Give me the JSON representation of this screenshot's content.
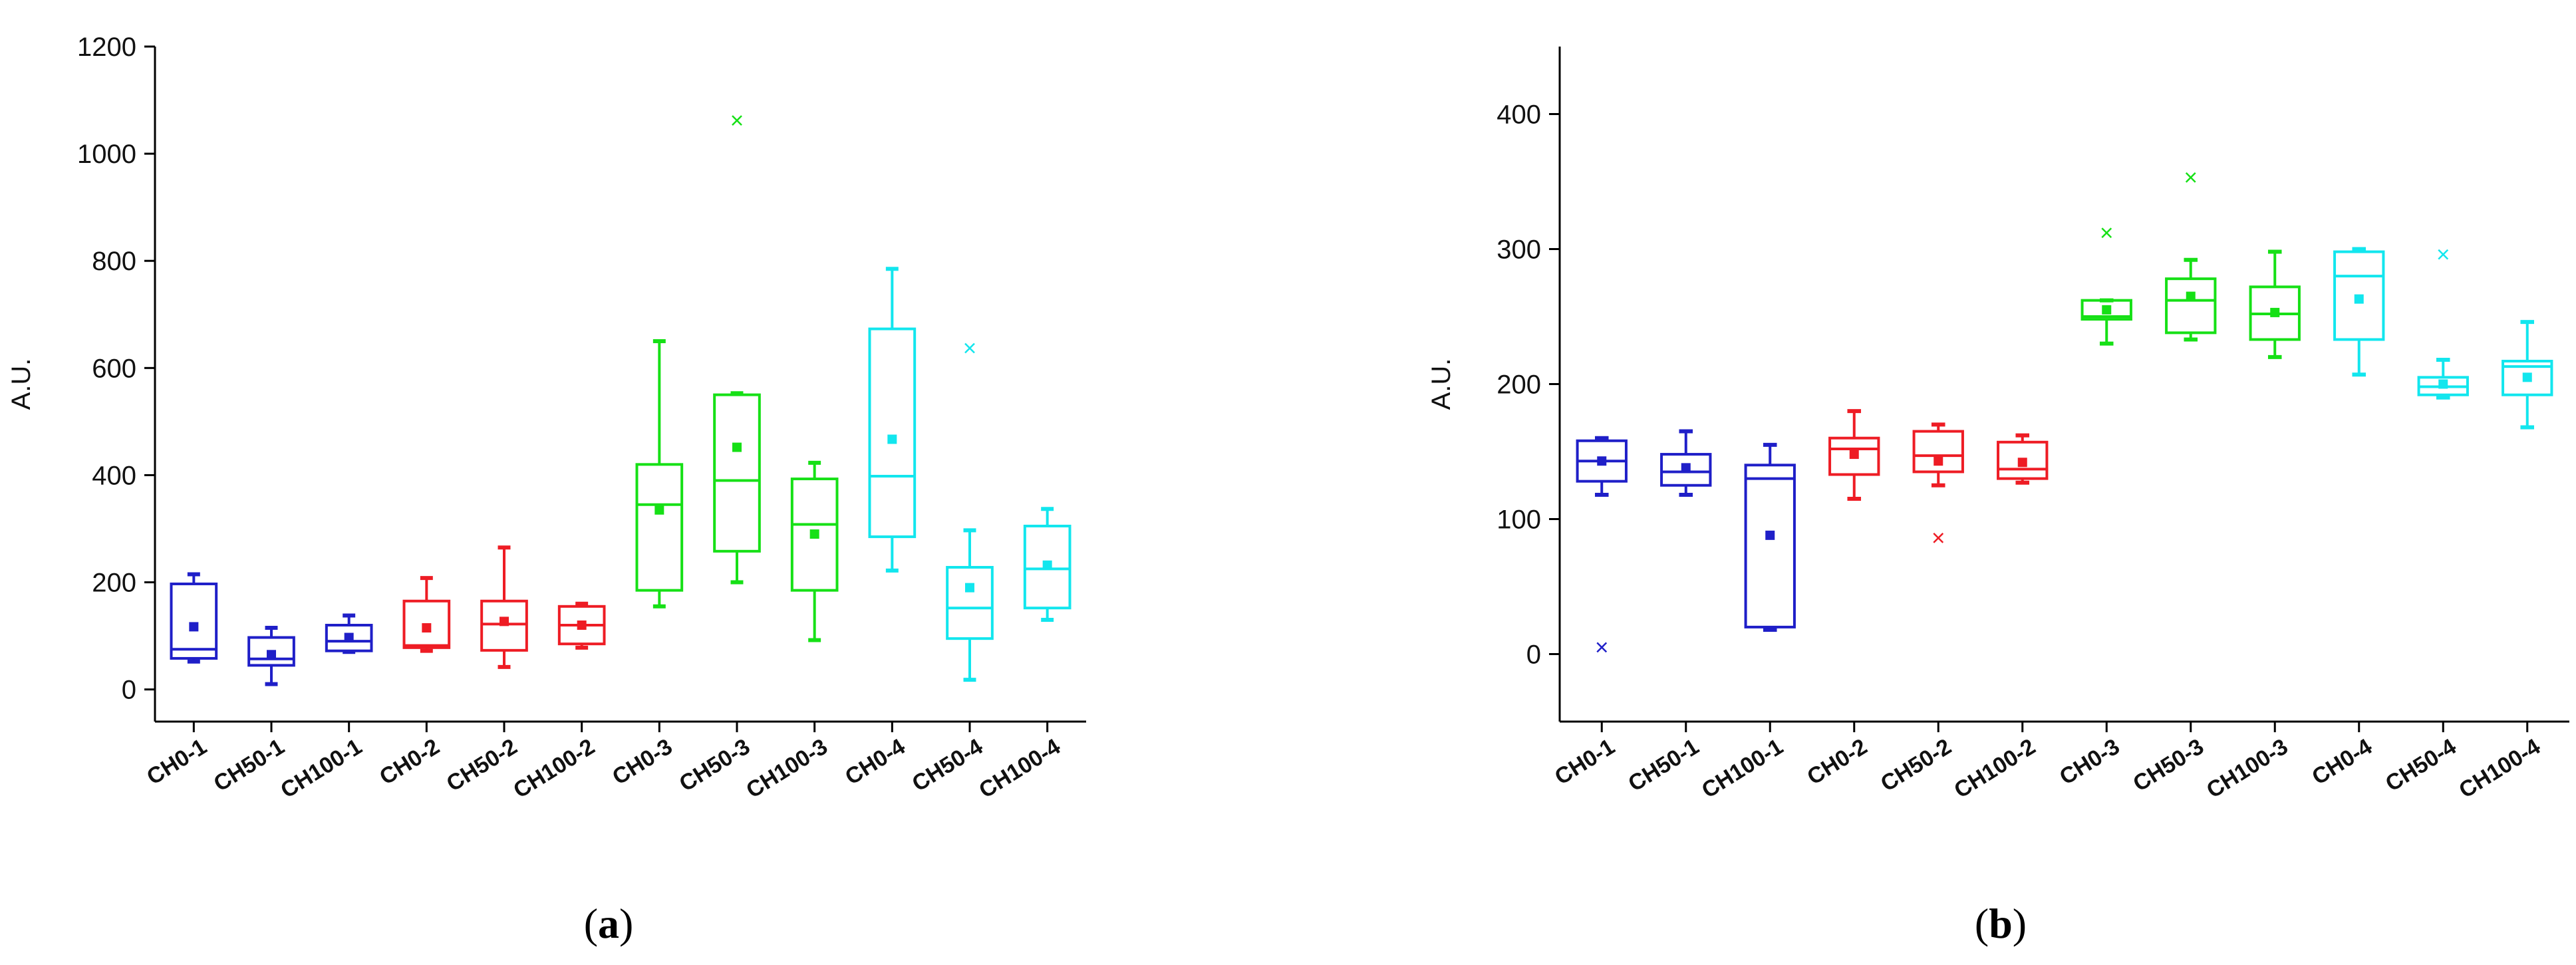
{
  "colors": {
    "blue": "#1f1fc8",
    "red": "#ee1c24",
    "green": "#16e016",
    "cyan": "#12e6ee"
  },
  "chart_data": [
    {
      "id": "a",
      "type": "box",
      "panel_label": "(a)",
      "panel_letter": "a",
      "ylabel": "A.U.",
      "xlabel": "",
      "ylim": [
        -60,
        1200
      ],
      "yticks": [
        0,
        200,
        400,
        600,
        800,
        1000,
        1200
      ],
      "categories": [
        "CH0-1",
        "CH50-1",
        "CH100-1",
        "CH0-2",
        "CH50-2",
        "CH100-2",
        "CH0-3",
        "CH50-3",
        "CH100-3",
        "CH0-4",
        "CH50-4",
        "CH100-4"
      ],
      "series": [
        {
          "name": "CH0-1",
          "color": "blue",
          "whisker_low": 52,
          "q1": 58,
          "median": 75,
          "q3": 197,
          "whisker_high": 215,
          "mean": 117,
          "outliers": []
        },
        {
          "name": "CH50-1",
          "color": "blue",
          "whisker_low": 10,
          "q1": 45,
          "median": 57,
          "q3": 97,
          "whisker_high": 115,
          "mean": 65,
          "outliers": []
        },
        {
          "name": "CH100-1",
          "color": "blue",
          "whisker_low": 70,
          "q1": 72,
          "median": 90,
          "q3": 120,
          "whisker_high": 138,
          "mean": 97,
          "outliers": []
        },
        {
          "name": "CH0-2",
          "color": "red",
          "whisker_low": 72,
          "q1": 78,
          "median": 82,
          "q3": 165,
          "whisker_high": 208,
          "mean": 115,
          "outliers": []
        },
        {
          "name": "CH50-2",
          "color": "red",
          "whisker_low": 42,
          "q1": 73,
          "median": 122,
          "q3": 165,
          "whisker_high": 265,
          "mean": 127,
          "outliers": []
        },
        {
          "name": "CH100-2",
          "color": "red",
          "whisker_low": 78,
          "q1": 85,
          "median": 120,
          "q3": 155,
          "whisker_high": 160,
          "mean": 120,
          "outliers": []
        },
        {
          "name": "CH0-3",
          "color": "green",
          "whisker_low": 155,
          "q1": 185,
          "median": 345,
          "q3": 420,
          "whisker_high": 650,
          "mean": 335,
          "outliers": []
        },
        {
          "name": "CH50-3",
          "color": "green",
          "whisker_low": 200,
          "q1": 258,
          "median": 390,
          "q3": 550,
          "whisker_high": 553,
          "mean": 452,
          "outliers": [
            1062
          ]
        },
        {
          "name": "CH100-3",
          "color": "green",
          "whisker_low": 92,
          "q1": 185,
          "median": 308,
          "q3": 393,
          "whisker_high": 423,
          "mean": 290,
          "outliers": []
        },
        {
          "name": "CH0-4",
          "color": "cyan",
          "whisker_low": 222,
          "q1": 285,
          "median": 398,
          "q3": 673,
          "whisker_high": 785,
          "mean": 467,
          "outliers": []
        },
        {
          "name": "CH50-4",
          "color": "cyan",
          "whisker_low": 18,
          "q1": 95,
          "median": 152,
          "q3": 228,
          "whisker_high": 297,
          "mean": 190,
          "outliers": [
            637
          ]
        },
        {
          "name": "CH100-4",
          "color": "cyan",
          "whisker_low": 130,
          "q1": 152,
          "median": 225,
          "q3": 305,
          "whisker_high": 337,
          "mean": 232,
          "outliers": []
        }
      ]
    },
    {
      "id": "b",
      "type": "box",
      "panel_label": "(b)",
      "panel_letter": "b",
      "ylabel": "A.U.",
      "xlabel": "",
      "ylim": [
        -50,
        450
      ],
      "yticks": [
        0,
        100,
        200,
        300,
        400
      ],
      "categories": [
        "CH0-1",
        "CH50-1",
        "CH100-1",
        "CH0-2",
        "CH50-2",
        "CH100-2",
        "CH0-3",
        "CH50-3",
        "CH100-3",
        "CH0-4",
        "CH50-4",
        "CH100-4"
      ],
      "series": [
        {
          "name": "CH0-1",
          "color": "blue",
          "whisker_low": 118,
          "q1": 128,
          "median": 143,
          "q3": 158,
          "whisker_high": 160,
          "mean": 143,
          "outliers": [
            5
          ]
        },
        {
          "name": "CH50-1",
          "color": "blue",
          "whisker_low": 118,
          "q1": 125,
          "median": 135,
          "q3": 148,
          "whisker_high": 165,
          "mean": 138,
          "outliers": []
        },
        {
          "name": "CH100-1",
          "color": "blue",
          "whisker_low": 18,
          "q1": 20,
          "median": 130,
          "q3": 140,
          "whisker_high": 155,
          "mean": 88,
          "outliers": []
        },
        {
          "name": "CH0-2",
          "color": "red",
          "whisker_low": 115,
          "q1": 133,
          "median": 152,
          "q3": 160,
          "whisker_high": 180,
          "mean": 148,
          "outliers": []
        },
        {
          "name": "CH50-2",
          "color": "red",
          "whisker_low": 125,
          "q1": 135,
          "median": 147,
          "q3": 165,
          "whisker_high": 170,
          "mean": 143,
          "outliers": [
            86
          ]
        },
        {
          "name": "CH100-2",
          "color": "red",
          "whisker_low": 127,
          "q1": 130,
          "median": 137,
          "q3": 157,
          "whisker_high": 162,
          "mean": 142,
          "outliers": []
        },
        {
          "name": "CH0-3",
          "color": "green",
          "whisker_low": 230,
          "q1": 248,
          "median": 250,
          "q3": 262,
          "whisker_high": 262,
          "mean": 255,
          "outliers": [
            312
          ]
        },
        {
          "name": "CH50-3",
          "color": "green",
          "whisker_low": 233,
          "q1": 238,
          "median": 262,
          "q3": 278,
          "whisker_high": 292,
          "mean": 265,
          "outliers": [
            353
          ]
        },
        {
          "name": "CH100-3",
          "color": "green",
          "whisker_low": 220,
          "q1": 233,
          "median": 252,
          "q3": 272,
          "whisker_high": 298,
          "mean": 253,
          "outliers": []
        },
        {
          "name": "CH0-4",
          "color": "cyan",
          "whisker_low": 207,
          "q1": 233,
          "median": 280,
          "q3": 298,
          "whisker_high": 300,
          "mean": 263,
          "outliers": []
        },
        {
          "name": "CH50-4",
          "color": "cyan",
          "whisker_low": 190,
          "q1": 192,
          "median": 198,
          "q3": 205,
          "whisker_high": 218,
          "mean": 200,
          "outliers": [
            296
          ]
        },
        {
          "name": "CH100-4",
          "color": "cyan",
          "whisker_low": 168,
          "q1": 192,
          "median": 213,
          "q3": 217,
          "whisker_high": 246,
          "mean": 205,
          "outliers": []
        }
      ]
    }
  ]
}
